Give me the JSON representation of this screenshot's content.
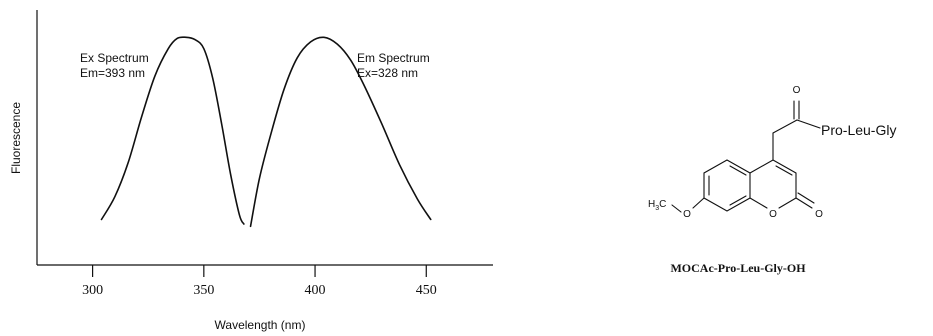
{
  "chart_data": {
    "type": "line",
    "xlabel": "Wavelength (nm)",
    "ylabel": "Fluorescence",
    "xlim": [
      275,
      480
    ],
    "ylim": [
      0,
      1.12
    ],
    "xticks": [
      300,
      350,
      400,
      450
    ],
    "grid": false,
    "series": [
      {
        "name": "Ex Spectrum",
        "annotation": "Em=393 nm",
        "x": [
          304,
          310,
          316,
          322,
          328,
          334,
          338,
          342,
          346,
          350,
          354,
          358,
          362,
          366,
          368
        ],
        "y": [
          0.2,
          0.3,
          0.45,
          0.65,
          0.83,
          0.95,
          0.995,
          1.0,
          0.99,
          0.95,
          0.82,
          0.62,
          0.4,
          0.22,
          0.18
        ]
      },
      {
        "name": "Em Spectrum",
        "annotation": "Ex=328 nm",
        "x": [
          371,
          375,
          380,
          386,
          392,
          398,
          404,
          410,
          416,
          422,
          430,
          438,
          446,
          452
        ],
        "y": [
          0.17,
          0.38,
          0.57,
          0.77,
          0.91,
          0.98,
          1.0,
          0.97,
          0.9,
          0.79,
          0.62,
          0.44,
          0.29,
          0.2
        ]
      }
    ]
  },
  "structure": {
    "substituent": "Pro-Leu-Gly",
    "carbonyl_o": "O",
    "ring_o": "O",
    "lactone_o": "O",
    "methoxy_o": "O",
    "methyl_h": "H",
    "methyl_sub": "3",
    "methyl_c": "C",
    "compound_name": "MOCAc-Pro-Leu-Gly-OH"
  }
}
